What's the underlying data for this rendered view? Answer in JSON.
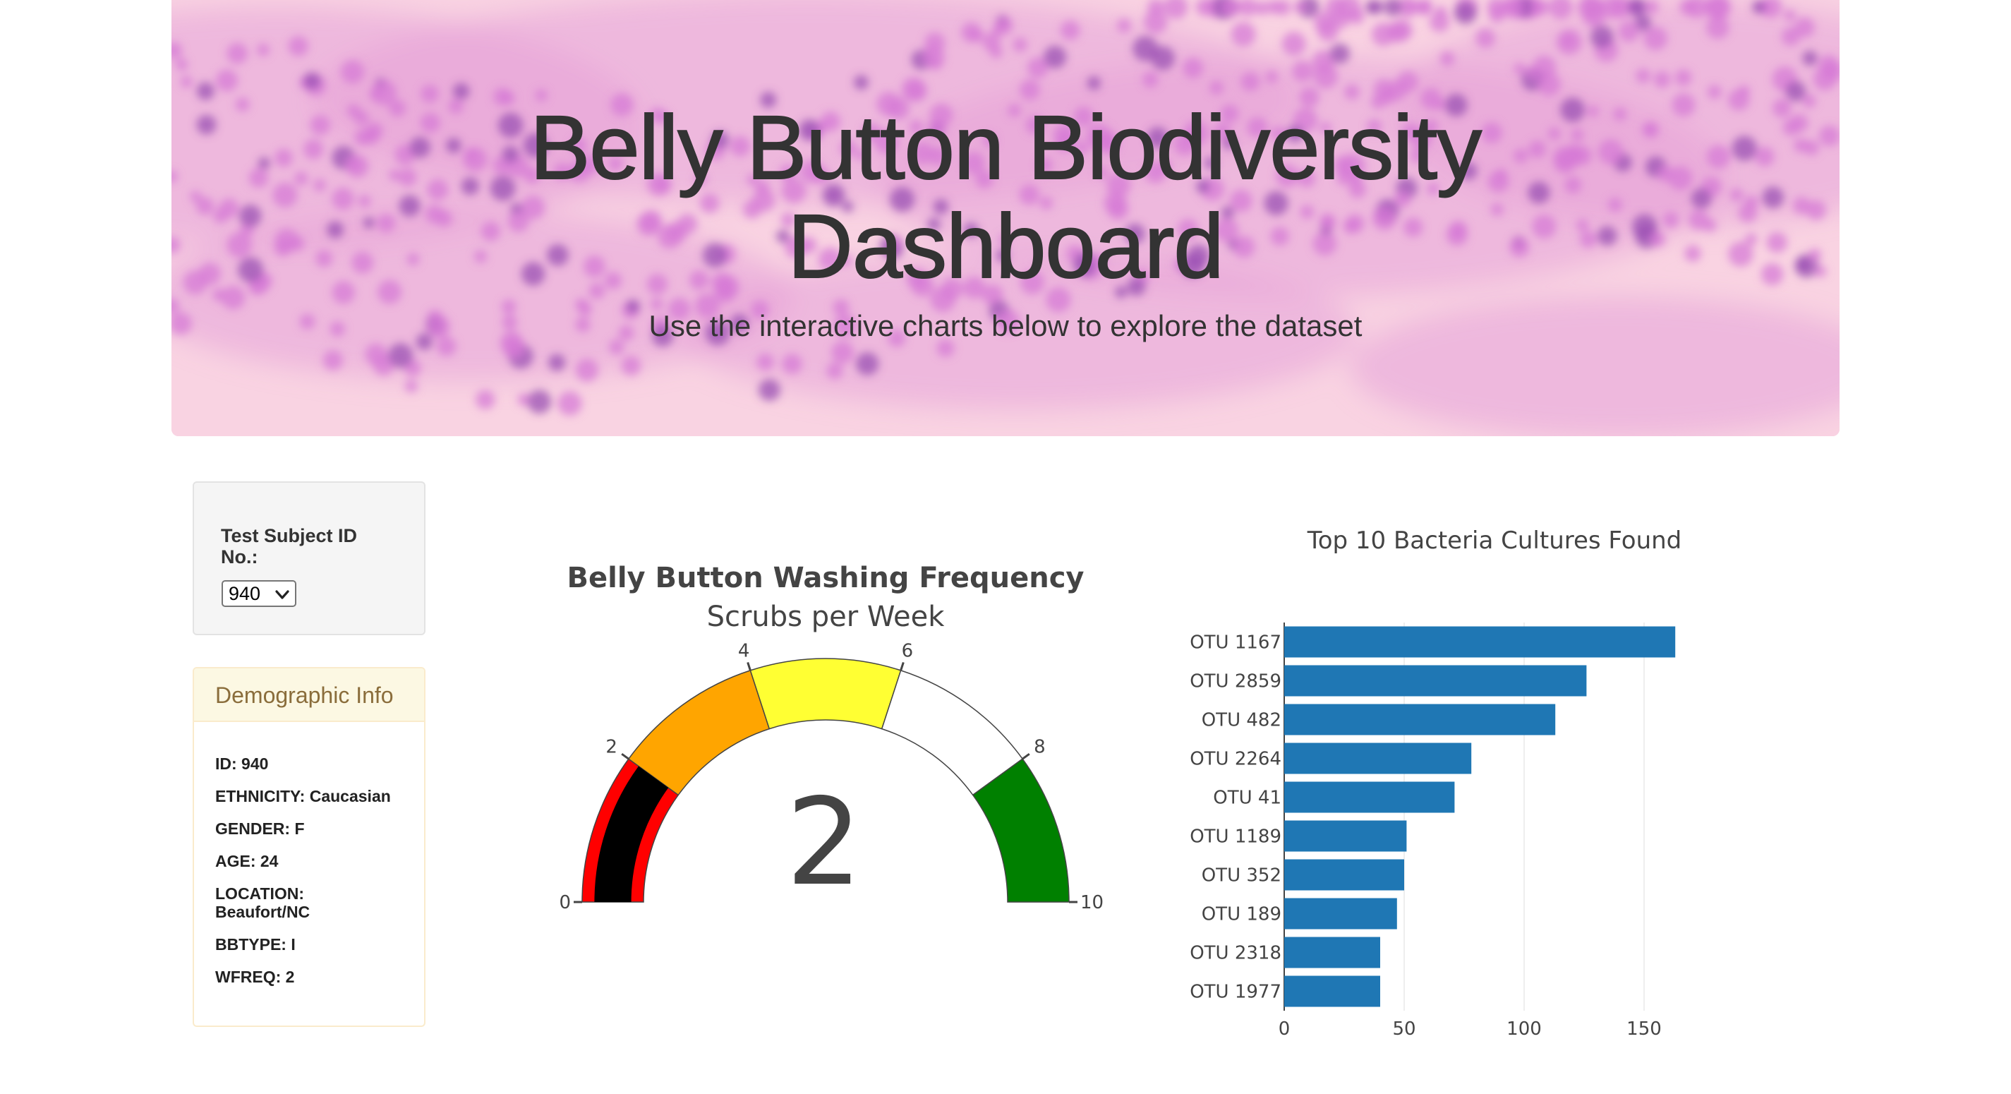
{
  "header": {
    "title_line1": "Belly Button Biodiversity",
    "title_line2": "Dashboard",
    "subtitle": "Use the interactive charts below to explore the dataset"
  },
  "selector": {
    "label": "Test Subject ID No.:",
    "value": "940"
  },
  "demographics": {
    "heading": "Demographic Info",
    "lines": [
      "ID: 940",
      "ETHNICITY: Caucasian",
      "GENDER: F",
      "AGE: 24",
      "LOCATION: Beaufort/NC",
      "BBTYPE: I",
      "WFREQ: 2"
    ]
  },
  "gauge": {
    "title": "Belly Button Washing Frequency",
    "subtitle": "Scrubs per Week",
    "value": 2,
    "range": [
      0,
      10
    ],
    "ticks": [
      0,
      2,
      4,
      6,
      8,
      10
    ],
    "bar_color": "#000000",
    "steps": [
      {
        "range": [
          0,
          2
        ],
        "color": "#ff0000"
      },
      {
        "range": [
          2,
          4
        ],
        "color": "#ffa500"
      },
      {
        "range": [
          4,
          6
        ],
        "color": "#ffff33"
      },
      {
        "range": [
          6,
          8
        ],
        "color": "#ffffff"
      },
      {
        "range": [
          8,
          10
        ],
        "color": "#008000"
      }
    ]
  },
  "chart_data": {
    "type": "bar",
    "orientation": "horizontal",
    "title": "Top 10 Bacteria Cultures Found",
    "categories": [
      "OTU 1167",
      "OTU 2859",
      "OTU 482",
      "OTU 2264",
      "OTU 41",
      "OTU 1189",
      "OTU 352",
      "OTU 189",
      "OTU 2318",
      "OTU 1977"
    ],
    "values": [
      163,
      126,
      113,
      78,
      71,
      51,
      50,
      47,
      40,
      40
    ],
    "xlim": [
      0,
      170
    ],
    "xticks": [
      0,
      50,
      100,
      150
    ],
    "color": "#1f77b4",
    "grid": true
  }
}
